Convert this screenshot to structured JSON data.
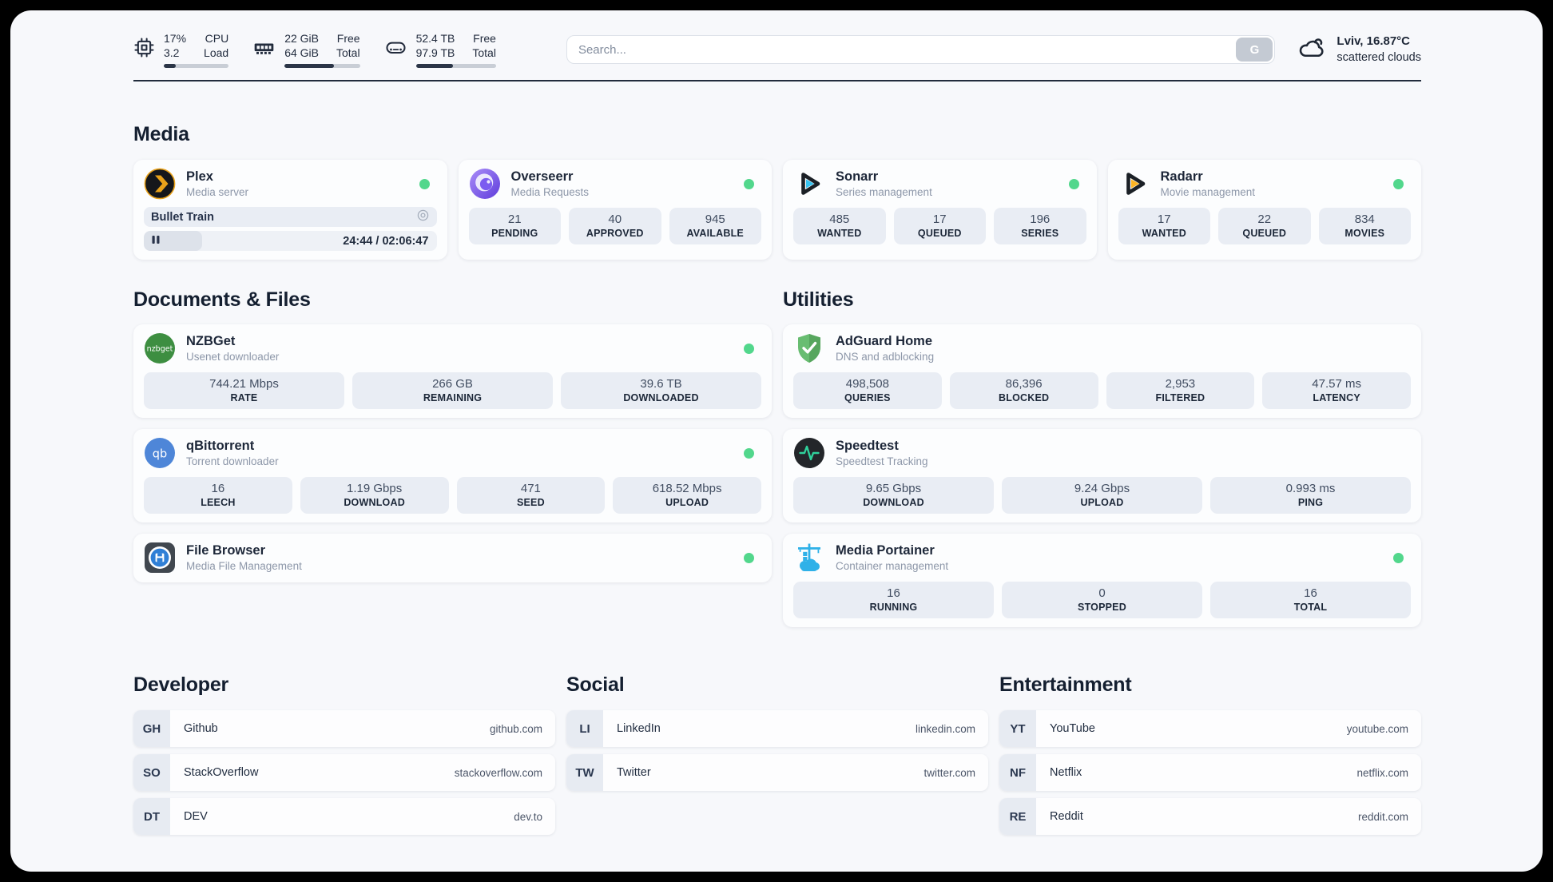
{
  "colors": {
    "status_online": "#52d78c",
    "accent_plex": "#e9a21a",
    "accent_overseerr": "#7c5cf0",
    "accent_sonarr": "#36c3f1",
    "accent_radarr": "#fcb424",
    "accent_nzbget": "#3d8e41",
    "accent_qbittorrent": "#4e86d8",
    "accent_adguard": "#68bd71",
    "accent_speedtest": "#2fd29c",
    "accent_portainer": "#2fb1e8"
  },
  "header": {
    "stats": [
      {
        "id": "cpu",
        "values": [
          "17%",
          "3.2"
        ],
        "labels": [
          "CPU",
          "Load"
        ],
        "progress": 18
      },
      {
        "id": "memory",
        "values": [
          "22 GiB",
          "64 GiB"
        ],
        "labels": [
          "Free",
          "Total"
        ],
        "progress": 66
      },
      {
        "id": "disk",
        "values": [
          "52.4 TB",
          "97.9 TB"
        ],
        "labels": [
          "Free",
          "Total"
        ],
        "progress": 46
      }
    ],
    "search": {
      "placeholder": "Search...",
      "button_label": "G"
    },
    "weather": {
      "location": "Lviv, 16.87°C",
      "condition": "scattered clouds"
    }
  },
  "sections": {
    "media": {
      "title": "Media",
      "plex": {
        "name": "Plex",
        "subtitle": "Media server",
        "status_dot": true,
        "now_playing": {
          "title": "Bullet Train",
          "time": "24:44 / 02:06:47",
          "progress": 20
        }
      },
      "overseerr": {
        "name": "Overseerr",
        "subtitle": "Media Requests",
        "status_dot": true,
        "stats": [
          {
            "value": "21",
            "label": "PENDING"
          },
          {
            "value": "40",
            "label": "APPROVED"
          },
          {
            "value": "945",
            "label": "AVAILABLE"
          }
        ]
      },
      "sonarr": {
        "name": "Sonarr",
        "subtitle": "Series management",
        "status_dot": true,
        "stats": [
          {
            "value": "485",
            "label": "WANTED"
          },
          {
            "value": "17",
            "label": "QUEUED"
          },
          {
            "value": "196",
            "label": "SERIES"
          }
        ]
      },
      "radarr": {
        "name": "Radarr",
        "subtitle": "Movie management",
        "status_dot": true,
        "stats": [
          {
            "value": "17",
            "label": "WANTED"
          },
          {
            "value": "22",
            "label": "QUEUED"
          },
          {
            "value": "834",
            "label": "MOVIES"
          }
        ]
      }
    },
    "documents": {
      "title": "Documents & Files",
      "nzbget": {
        "name": "NZBGet",
        "subtitle": "Usenet downloader",
        "status_dot": true,
        "stats": [
          {
            "value": "744.21 Mbps",
            "label": "RATE"
          },
          {
            "value": "266 GB",
            "label": "REMAINING"
          },
          {
            "value": "39.6 TB",
            "label": "DOWNLOADED"
          }
        ]
      },
      "qbittorrent": {
        "name": "qBittorrent",
        "subtitle": "Torrent downloader",
        "status_dot": true,
        "stats": [
          {
            "value": "16",
            "label": "LEECH"
          },
          {
            "value": "1.19 Gbps",
            "label": "DOWNLOAD"
          },
          {
            "value": "471",
            "label": "SEED"
          },
          {
            "value": "618.52 Mbps",
            "label": "UPLOAD"
          }
        ]
      },
      "filebrowser": {
        "name": "File Browser",
        "subtitle": "Media File Management",
        "status_dot": true
      }
    },
    "utilities": {
      "title": "Utilities",
      "adguard": {
        "name": "AdGuard Home",
        "subtitle": "DNS and adblocking",
        "status_dot": false,
        "stats": [
          {
            "value": "498,508",
            "label": "QUERIES"
          },
          {
            "value": "86,396",
            "label": "BLOCKED"
          },
          {
            "value": "2,953",
            "label": "FILTERED"
          },
          {
            "value": "47.57 ms",
            "label": "LATENCY"
          }
        ]
      },
      "speedtest": {
        "name": "Speedtest",
        "subtitle": "Speedtest Tracking",
        "status_dot": false,
        "stats": [
          {
            "value": "9.65 Gbps",
            "label": "DOWNLOAD"
          },
          {
            "value": "9.24 Gbps",
            "label": "UPLOAD"
          },
          {
            "value": "0.993 ms",
            "label": "PING"
          }
        ]
      },
      "portainer": {
        "name": "Media Portainer",
        "subtitle": "Container management",
        "status_dot": true,
        "stats": [
          {
            "value": "16",
            "label": "RUNNING"
          },
          {
            "value": "0",
            "label": "STOPPED"
          },
          {
            "value": "16",
            "label": "TOTAL"
          }
        ]
      }
    },
    "bookmarks": [
      {
        "title": "Developer",
        "items": [
          {
            "abbr": "GH",
            "name": "Github",
            "url": "github.com"
          },
          {
            "abbr": "SO",
            "name": "StackOverflow",
            "url": "stackoverflow.com"
          },
          {
            "abbr": "DT",
            "name": "DEV",
            "url": "dev.to"
          }
        ]
      },
      {
        "title": "Social",
        "items": [
          {
            "abbr": "LI",
            "name": "LinkedIn",
            "url": "linkedin.com"
          },
          {
            "abbr": "TW",
            "name": "Twitter",
            "url": "twitter.com"
          }
        ]
      },
      {
        "title": "Entertainment",
        "items": [
          {
            "abbr": "YT",
            "name": "YouTube",
            "url": "youtube.com"
          },
          {
            "abbr": "NF",
            "name": "Netflix",
            "url": "netflix.com"
          },
          {
            "abbr": "RE",
            "name": "Reddit",
            "url": "reddit.com"
          }
        ]
      }
    ]
  }
}
